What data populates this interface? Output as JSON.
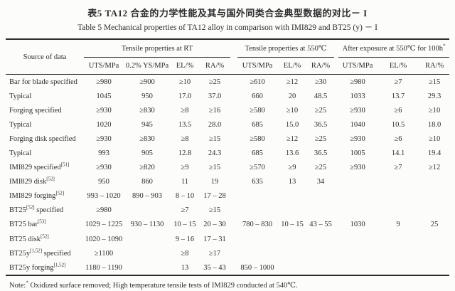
{
  "titles": {
    "zh": "表5  TA12 合金的力学性能及其与国外同类合金典型数据的对比－ I",
    "en": "Table 5   Mechanical properties of TA12 alloy in comparison with IMI829 and BT25 (y) － I"
  },
  "table": {
    "source_header": "Source of data",
    "groups": [
      {
        "label": "Tensile properties at RT",
        "sup": ""
      },
      {
        "label": "Tensile properties at 550℃",
        "sup": ""
      },
      {
        "label": "After exposure at 550℃ for 100h",
        "sup": "*"
      }
    ],
    "col_headers": [
      "UTS/MPa",
      "0.2% YS/MPa",
      "EL/%",
      "RA/%",
      "UTS/MPa",
      "EL/%",
      "RA/%",
      "UTS/MPa",
      "EL/%",
      "RA/%"
    ],
    "rows": [
      {
        "label": "Bar for blade specified",
        "sup": "",
        "label_after": "",
        "cells": [
          "≥980",
          "≥900",
          "≥10",
          "≥25",
          "≥610",
          "≥12",
          "≥30",
          "≥980",
          "≥7",
          "≥15"
        ]
      },
      {
        "label": "Typical",
        "sup": "",
        "label_after": "",
        "cells": [
          "1045",
          "950",
          "17.0",
          "37.0",
          "660",
          "20",
          "48.5",
          "1033",
          "13.7",
          "29.3"
        ]
      },
      {
        "label": "Forging specified",
        "sup": "",
        "label_after": "",
        "cells": [
          "≥930",
          "≥830",
          "≥8",
          "≥16",
          "≥580",
          "≥10",
          "≥25",
          "≥930",
          "≥6",
          "≥10"
        ]
      },
      {
        "label": "Typical",
        "sup": "",
        "label_after": "",
        "cells": [
          "1020",
          "945",
          "13.5",
          "28.0",
          "685",
          "15.0",
          "36.5",
          "1040",
          "10.5",
          "18.0"
        ]
      },
      {
        "label": "Forging disk specified",
        "sup": "",
        "label_after": "",
        "cells": [
          "≥930",
          "≥830",
          "≥8",
          "≥15",
          "≥580",
          "≥12",
          "≥25",
          "≥930",
          "≥6",
          "≥10"
        ]
      },
      {
        "label": "Typical",
        "sup": "",
        "label_after": "",
        "cells": [
          "993",
          "905",
          "12.8",
          "24.3",
          "685",
          "13.6",
          "36.5",
          "1005",
          "14.1",
          "19.4"
        ]
      },
      {
        "label": "IMI829 specified",
        "sup": "[51]",
        "label_after": "",
        "cells": [
          "≥930",
          "≥820",
          "≥9",
          "≥15",
          "≥570",
          "≥9",
          "≥25",
          "≥930",
          "≥7",
          "≥12"
        ]
      },
      {
        "label": "IMI829 disk",
        "sup": "[52]",
        "label_after": "",
        "cells": [
          "950",
          "860",
          "11",
          "19",
          "635",
          "13",
          "34",
          "",
          "",
          ""
        ]
      },
      {
        "label": "IMI829 forging",
        "sup": "[52]",
        "label_after": "",
        "cells": [
          "993 – 1020",
          "890 – 903",
          "8 – 10",
          "17 – 28",
          "",
          "",
          "",
          "",
          "",
          ""
        ]
      },
      {
        "label": "BT25",
        "sup": "[52]",
        "label_after": " specified",
        "cells": [
          "≥980",
          "",
          "≥7",
          "≥15",
          "",
          "",
          "",
          "",
          "",
          ""
        ]
      },
      {
        "label": "BT25 bar",
        "sup": "[53]",
        "label_after": "",
        "cells": [
          "1029 – 1225",
          "930 – 1130",
          "10 – 15",
          "20 – 30",
          "780 – 830",
          "10 – 15",
          "43 – 55",
          "1030",
          "9",
          "25"
        ]
      },
      {
        "label": "BT25 disk",
        "sup": "[52]",
        "label_after": "",
        "cells": [
          "1020 – 1090",
          "",
          "9 – 16",
          "17 – 31",
          "",
          "",
          "",
          "",
          "",
          ""
        ]
      },
      {
        "label": "BT25y",
        "sup": "[1,52]",
        "label_after": " specified",
        "cells": [
          "≥1100",
          "",
          "≥8",
          "≥17",
          "",
          "",
          "",
          "",
          "",
          ""
        ]
      },
      {
        "label": "BT25y forging",
        "sup": "[1,52]",
        "label_after": "",
        "cells": [
          "1180 – 1190",
          "",
          "13",
          "35 – 43",
          "850 – 1000",
          "",
          "",
          "",
          "",
          ""
        ]
      }
    ]
  },
  "note": {
    "prefix": "Note:",
    "sup": "*",
    "text": " Oxidized surface removed; High temperature tensile tests of IMI829 conducted at 540℃."
  }
}
